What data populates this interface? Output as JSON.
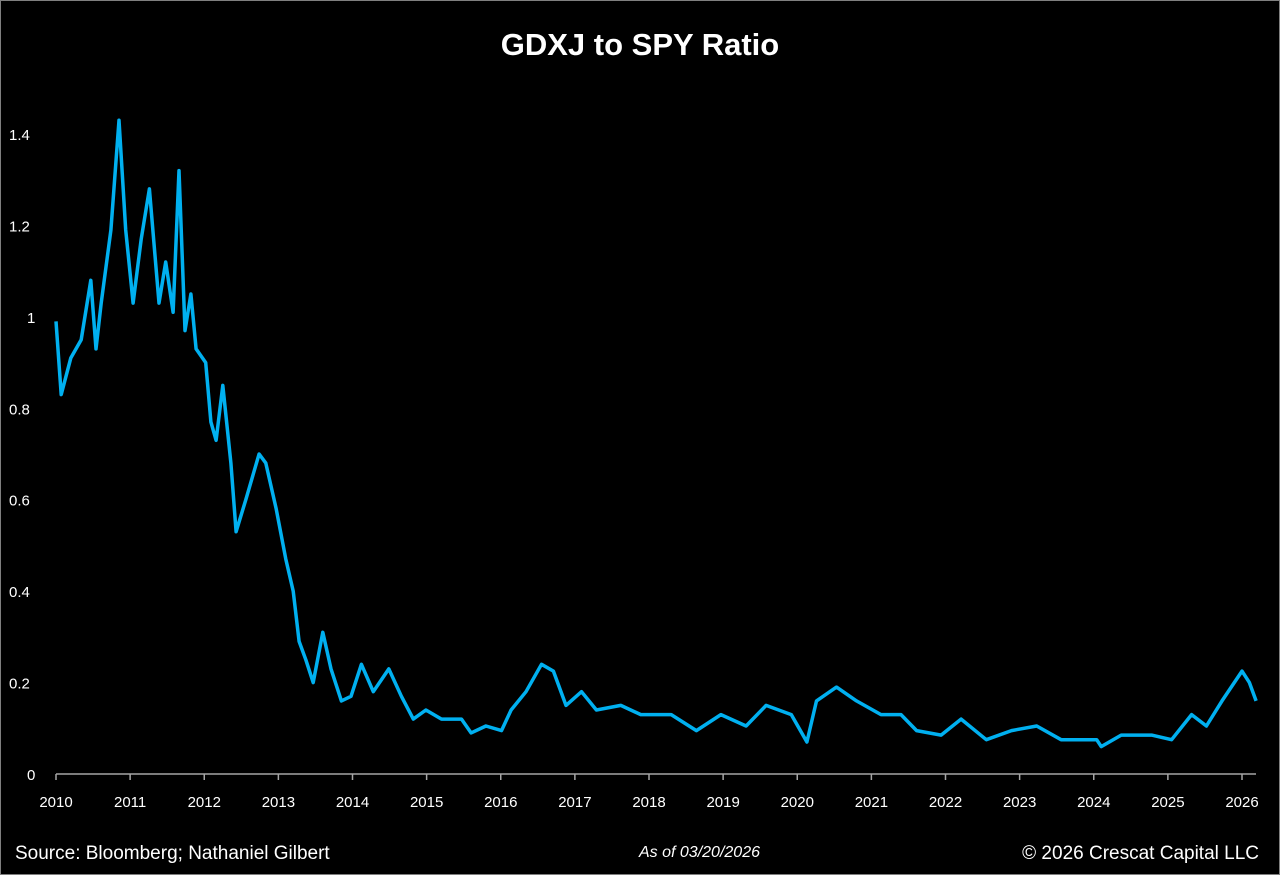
{
  "chart_data": {
    "type": "line",
    "title": "GDXJ to SPY Ratio",
    "xlabel": "",
    "ylabel": "",
    "xlim": [
      2010,
      2026.2
    ],
    "ylim": [
      0,
      1.4
    ],
    "grid": false,
    "line_color": "#00b0f0",
    "x_ticks": [
      "2010",
      "2011",
      "2012",
      "2013",
      "2014",
      "2015",
      "2016",
      "2017",
      "2018",
      "2019",
      "2020",
      "2021",
      "2022",
      "2023",
      "2024",
      "2025",
      "2026"
    ],
    "y_ticks": [
      {
        "value": 0,
        "label": "0"
      },
      {
        "value": 0.2,
        "label": "0.2"
      },
      {
        "value": 0.4,
        "label": "0.4"
      },
      {
        "value": 0.6,
        "label": "0.6"
      },
      {
        "value": 0.8,
        "label": "0.8"
      },
      {
        "value": 1.0,
        "label": "1"
      },
      {
        "value": 1.2,
        "label": "1.2"
      },
      {
        "value": 1.4,
        "label": "1.4"
      }
    ],
    "series": [
      {
        "name": "GDXJ/SPY",
        "points": [
          [
            2010.0,
            0.99
          ],
          [
            2010.07,
            0.83
          ],
          [
            2010.2,
            0.91
          ],
          [
            2010.34,
            0.95
          ],
          [
            2010.47,
            1.08
          ],
          [
            2010.54,
            0.93
          ],
          [
            2010.61,
            1.03
          ],
          [
            2010.74,
            1.19
          ],
          [
            2010.85,
            1.43
          ],
          [
            2010.94,
            1.19
          ],
          [
            2011.04,
            1.03
          ],
          [
            2011.15,
            1.17
          ],
          [
            2011.26,
            1.28
          ],
          [
            2011.39,
            1.03
          ],
          [
            2011.48,
            1.12
          ],
          [
            2011.58,
            1.01
          ],
          [
            2011.66,
            1.32
          ],
          [
            2011.74,
            0.97
          ],
          [
            2011.82,
            1.05
          ],
          [
            2011.89,
            0.93
          ],
          [
            2012.02,
            0.9
          ],
          [
            2012.09,
            0.77
          ],
          [
            2012.16,
            0.73
          ],
          [
            2012.25,
            0.85
          ],
          [
            2012.36,
            0.68
          ],
          [
            2012.43,
            0.53
          ],
          [
            2012.56,
            0.6
          ],
          [
            2012.74,
            0.7
          ],
          [
            2012.83,
            0.68
          ],
          [
            2012.97,
            0.58
          ],
          [
            2013.1,
            0.47
          ],
          [
            2013.2,
            0.4
          ],
          [
            2013.28,
            0.29
          ],
          [
            2013.37,
            0.25
          ],
          [
            2013.47,
            0.2
          ],
          [
            2013.6,
            0.31
          ],
          [
            2013.71,
            0.23
          ],
          [
            2013.85,
            0.16
          ],
          [
            2013.98,
            0.17
          ],
          [
            2014.12,
            0.24
          ],
          [
            2014.28,
            0.18
          ],
          [
            2014.49,
            0.23
          ],
          [
            2014.66,
            0.17
          ],
          [
            2014.82,
            0.12
          ],
          [
            2014.99,
            0.14
          ],
          [
            2015.2,
            0.12
          ],
          [
            2015.47,
            0.12
          ],
          [
            2015.6,
            0.09
          ],
          [
            2015.8,
            0.105
          ],
          [
            2016.01,
            0.095
          ],
          [
            2016.14,
            0.14
          ],
          [
            2016.34,
            0.18
          ],
          [
            2016.55,
            0.24
          ],
          [
            2016.71,
            0.225
          ],
          [
            2016.88,
            0.15
          ],
          [
            2017.09,
            0.18
          ],
          [
            2017.29,
            0.14
          ],
          [
            2017.62,
            0.15
          ],
          [
            2017.89,
            0.13
          ],
          [
            2018.3,
            0.13
          ],
          [
            2018.64,
            0.095
          ],
          [
            2018.97,
            0.13
          ],
          [
            2019.31,
            0.105
          ],
          [
            2019.58,
            0.15
          ],
          [
            2019.92,
            0.13
          ],
          [
            2020.13,
            0.07
          ],
          [
            2020.26,
            0.16
          ],
          [
            2020.53,
            0.19
          ],
          [
            2020.8,
            0.16
          ],
          [
            2021.13,
            0.13
          ],
          [
            2021.4,
            0.13
          ],
          [
            2021.61,
            0.095
          ],
          [
            2021.94,
            0.085
          ],
          [
            2022.21,
            0.12
          ],
          [
            2022.55,
            0.075
          ],
          [
            2022.89,
            0.095
          ],
          [
            2023.23,
            0.105
          ],
          [
            2023.56,
            0.075
          ],
          [
            2024.04,
            0.075
          ],
          [
            2024.1,
            0.06
          ],
          [
            2024.37,
            0.085
          ],
          [
            2024.78,
            0.085
          ],
          [
            2025.05,
            0.075
          ],
          [
            2025.32,
            0.13
          ],
          [
            2025.52,
            0.105
          ],
          [
            2025.73,
            0.16
          ],
          [
            2026.0,
            0.225
          ],
          [
            2026.1,
            0.2
          ],
          [
            2026.19,
            0.16
          ]
        ]
      }
    ]
  },
  "footer": {
    "source": "Source: Bloomberg; Nathaniel Gilbert",
    "as_of": "As of 03/20/2026",
    "copyright": "© 2026 Crescat Capital LLC"
  }
}
